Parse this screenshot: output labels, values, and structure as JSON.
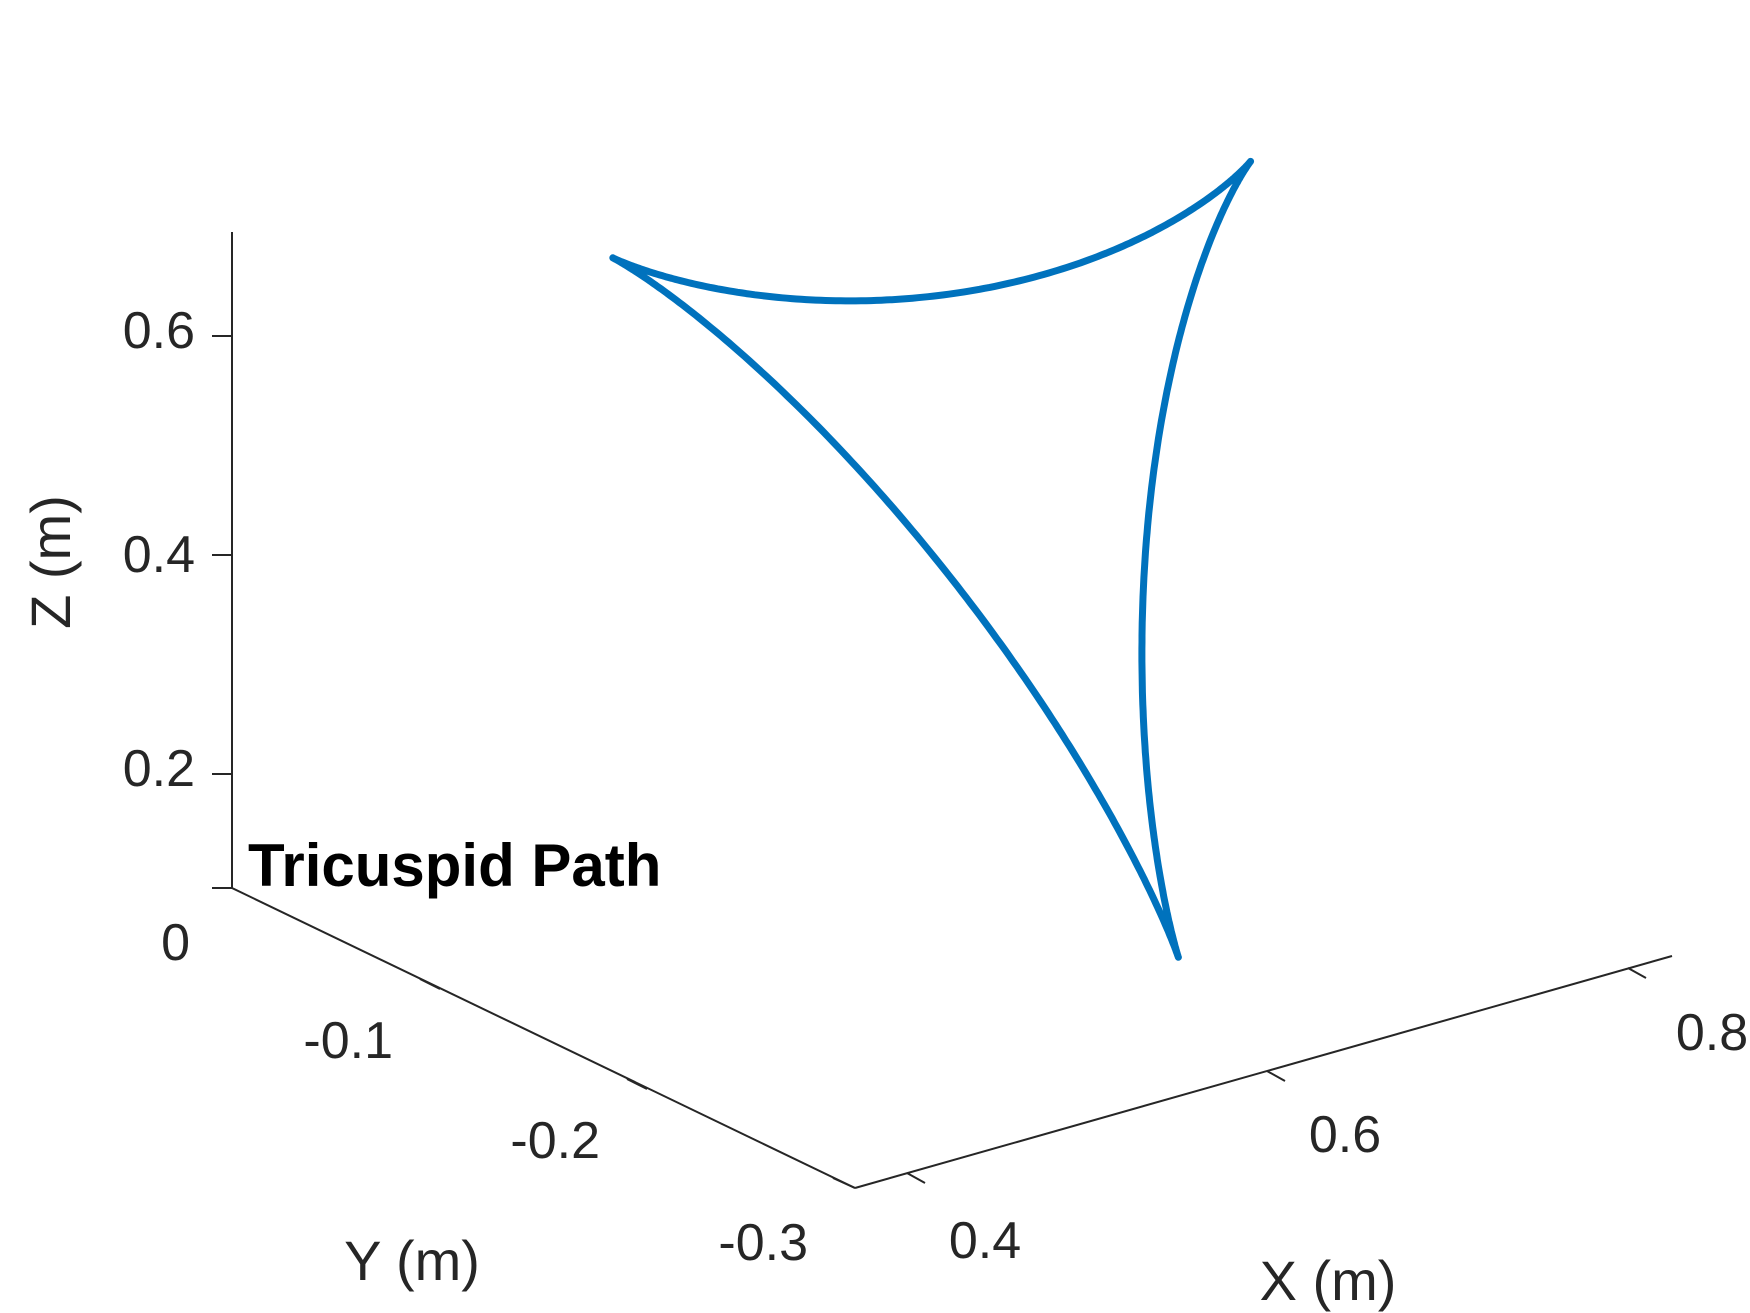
{
  "chart_data": {
    "type": "line",
    "projection": "3d",
    "title": "Tricuspid Path",
    "xlabel": "X (m)",
    "ylabel": "Y (m)",
    "zlabel": "Z (m)",
    "xlim": [
      0.35,
      0.85
    ],
    "ylim": [
      -0.3,
      0
    ],
    "zlim": [
      0,
      0.7
    ],
    "xticks": [
      0.4,
      0.6,
      0.8
    ],
    "xtick_labels": [
      "0.4",
      "0.6",
      "0.8"
    ],
    "yticks": [
      -0.3,
      -0.2,
      -0.1,
      0
    ],
    "ytick_labels": [
      "-0.3",
      "-0.2",
      "-0.1",
      "0"
    ],
    "zticks": [
      0.2,
      0.4,
      0.6
    ],
    "ztick_labels": [
      "0.2",
      "0.4",
      "0.6"
    ],
    "grid": false,
    "series": [
      {
        "color": "#0072BD",
        "curve": "deltoid (tricuspid hypocycloid)",
        "cusps": [
          {
            "x": 0.475,
            "y": -0.075,
            "z": 0.585
          },
          {
            "x": 0.768,
            "y": -0.128,
            "z": 0.585
          },
          {
            "x": 0.563,
            "y": -0.271,
            "z": 0.085
          }
        ],
        "center": {
          "x": 0.602,
          "y": -0.158,
          "z": 0.418
        }
      }
    ]
  }
}
